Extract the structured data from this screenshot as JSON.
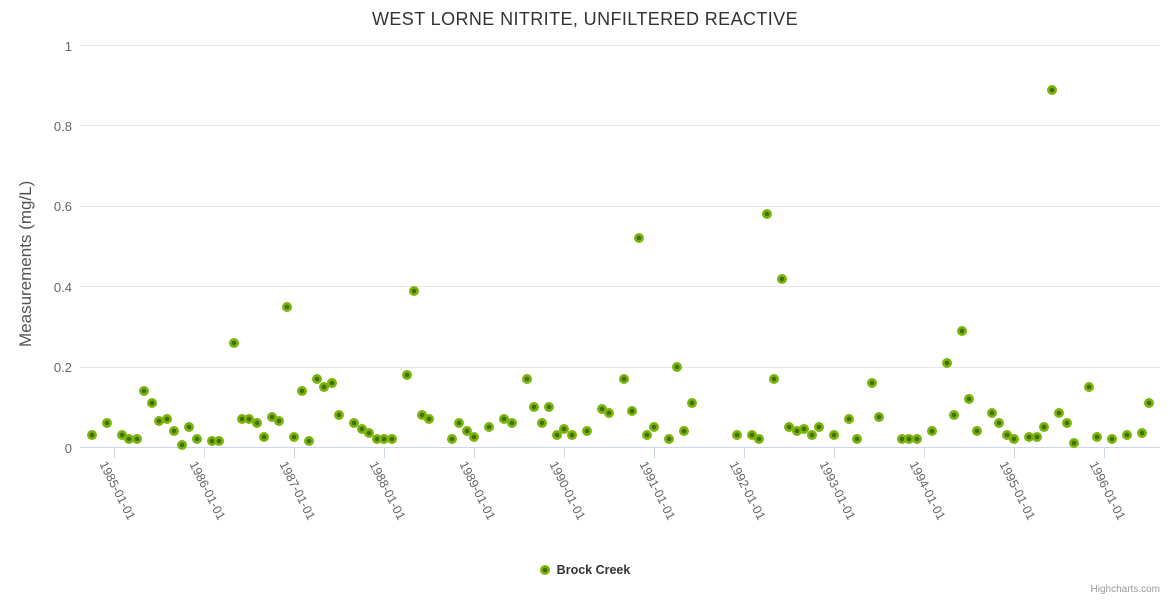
{
  "title": "WEST LORNE NITRITE, UNFILTERED REACTIVE",
  "credits": "Highcharts.com",
  "colors": {
    "point_outer": "#7cb40a",
    "point_inner": "#426f03",
    "grid": "#e6e6e6",
    "axis_line": "#ccd6eb",
    "title_text": "#333333",
    "tick_text": "#666666"
  },
  "legend": {
    "series_label": "Brock Creek"
  },
  "chart_data": {
    "type": "scatter",
    "title": "WEST LORNE NITRITE, UNFILTERED REACTIVE",
    "xlabel": "",
    "ylabel": "Measurements (mg/L)",
    "ylim": [
      0,
      1
    ],
    "yticks": [
      0,
      0.2,
      0.4,
      0.6,
      0.8,
      1
    ],
    "ytick_labels": [
      "0",
      "0.2",
      "0.4",
      "0.6",
      "0.8",
      "1"
    ],
    "xtick_labels": [
      "1985-01-01",
      "1986-01-01",
      "1987-01-01",
      "1988-01-01",
      "1989-01-01",
      "1990-01-01",
      "1991-01-01",
      "1992-01-01",
      "1993-01-01",
      "1994-01-01",
      "1995-01-01",
      "1996-01-01"
    ],
    "xlim_years": [
      1984.622,
      1996.622
    ],
    "grid": true,
    "legend_position": "bottom",
    "series": [
      {
        "name": "Brock Creek",
        "points": [
          [
            "1984-10",
            0.03
          ],
          [
            "1984-12",
            0.06
          ],
          [
            "1985-02",
            0.03
          ],
          [
            "1985-03",
            0.02
          ],
          [
            "1985-04",
            0.02
          ],
          [
            "1985-05",
            0.14
          ],
          [
            "1985-06",
            0.11
          ],
          [
            "1985-07",
            0.065
          ],
          [
            "1985-08",
            0.07
          ],
          [
            "1985-09",
            0.04
          ],
          [
            "1985-10",
            0.005
          ],
          [
            "1985-11",
            0.05
          ],
          [
            "1985-12",
            0.02
          ],
          [
            "1986-02",
            0.015
          ],
          [
            "1986-03",
            0.015
          ],
          [
            "1986-05",
            0.26
          ],
          [
            "1986-06",
            0.07
          ],
          [
            "1986-07",
            0.07
          ],
          [
            "1986-08",
            0.06
          ],
          [
            "1986-09",
            0.025
          ],
          [
            "1986-10",
            0.075
          ],
          [
            "1986-11",
            0.065
          ],
          [
            "1986-12",
            0.35
          ],
          [
            "1987-01",
            0.025
          ],
          [
            "1987-02",
            0.14
          ],
          [
            "1987-03",
            0.015
          ],
          [
            "1987-04",
            0.17
          ],
          [
            "1987-05",
            0.15
          ],
          [
            "1987-06",
            0.16
          ],
          [
            "1987-07",
            0.08
          ],
          [
            "1987-09",
            0.06
          ],
          [
            "1987-10",
            0.045
          ],
          [
            "1987-11",
            0.035
          ],
          [
            "1987-12",
            0.02
          ],
          [
            "1988-01",
            0.02
          ],
          [
            "1988-02",
            0.02
          ],
          [
            "1988-04",
            0.18
          ],
          [
            "1988-05",
            0.39
          ],
          [
            "1988-06",
            0.08
          ],
          [
            "1988-07",
            0.07
          ],
          [
            "1988-10",
            0.02
          ],
          [
            "1988-11",
            0.06
          ],
          [
            "1988-12",
            0.04
          ],
          [
            "1989-01",
            0.025
          ],
          [
            "1989-03",
            0.05
          ],
          [
            "1989-05",
            0.07
          ],
          [
            "1989-06",
            0.06
          ],
          [
            "1989-08",
            0.17
          ],
          [
            "1989-09",
            0.1
          ],
          [
            "1989-10",
            0.06
          ],
          [
            "1989-11",
            0.1
          ],
          [
            "1989-12",
            0.03
          ],
          [
            "1990-01",
            0.045
          ],
          [
            "1990-02",
            0.03
          ],
          [
            "1990-04",
            0.04
          ],
          [
            "1990-06",
            0.095
          ],
          [
            "1990-07",
            0.085
          ],
          [
            "1990-09",
            0.17
          ],
          [
            "1990-10",
            0.09
          ],
          [
            "1990-11",
            0.52
          ],
          [
            "1990-12",
            0.03
          ],
          [
            "1991-01",
            0.05
          ],
          [
            "1991-03",
            0.02
          ],
          [
            "1991-04",
            0.2
          ],
          [
            "1991-05",
            0.04
          ],
          [
            "1991-06",
            0.11
          ],
          [
            "1991-12",
            0.03
          ],
          [
            "1992-02",
            0.03
          ],
          [
            "1992-03",
            0.02
          ],
          [
            "1992-04",
            0.58
          ],
          [
            "1992-05",
            0.17
          ],
          [
            "1992-06",
            0.42
          ],
          [
            "1992-07",
            0.05
          ],
          [
            "1992-08",
            0.04
          ],
          [
            "1992-09",
            0.045
          ],
          [
            "1992-10",
            0.03
          ],
          [
            "1992-11",
            0.05
          ],
          [
            "1993-01",
            0.03
          ],
          [
            "1993-03",
            0.07
          ],
          [
            "1993-04",
            0.02
          ],
          [
            "1993-06",
            0.16
          ],
          [
            "1993-07",
            0.075
          ],
          [
            "1993-10",
            0.02
          ],
          [
            "1993-11",
            0.02
          ],
          [
            "1993-12",
            0.02
          ],
          [
            "1994-02",
            0.04
          ],
          [
            "1994-04",
            0.21
          ],
          [
            "1994-05",
            0.08
          ],
          [
            "1994-06",
            0.29
          ],
          [
            "1994-07",
            0.12
          ],
          [
            "1994-08",
            0.04
          ],
          [
            "1994-10",
            0.085
          ],
          [
            "1994-11",
            0.06
          ],
          [
            "1994-12",
            0.03
          ],
          [
            "1995-01",
            0.02
          ],
          [
            "1995-03",
            0.025
          ],
          [
            "1995-04",
            0.025
          ],
          [
            "1995-05",
            0.05
          ],
          [
            "1995-06",
            0.89
          ],
          [
            "1995-07",
            0.085
          ],
          [
            "1995-08",
            0.06
          ],
          [
            "1995-09",
            0.01
          ],
          [
            "1995-11",
            0.15
          ],
          [
            "1995-12",
            0.025
          ],
          [
            "1996-02",
            0.02
          ],
          [
            "1996-04",
            0.03
          ],
          [
            "1996-06",
            0.035
          ],
          [
            "1996-07",
            0.11
          ]
        ]
      }
    ]
  }
}
